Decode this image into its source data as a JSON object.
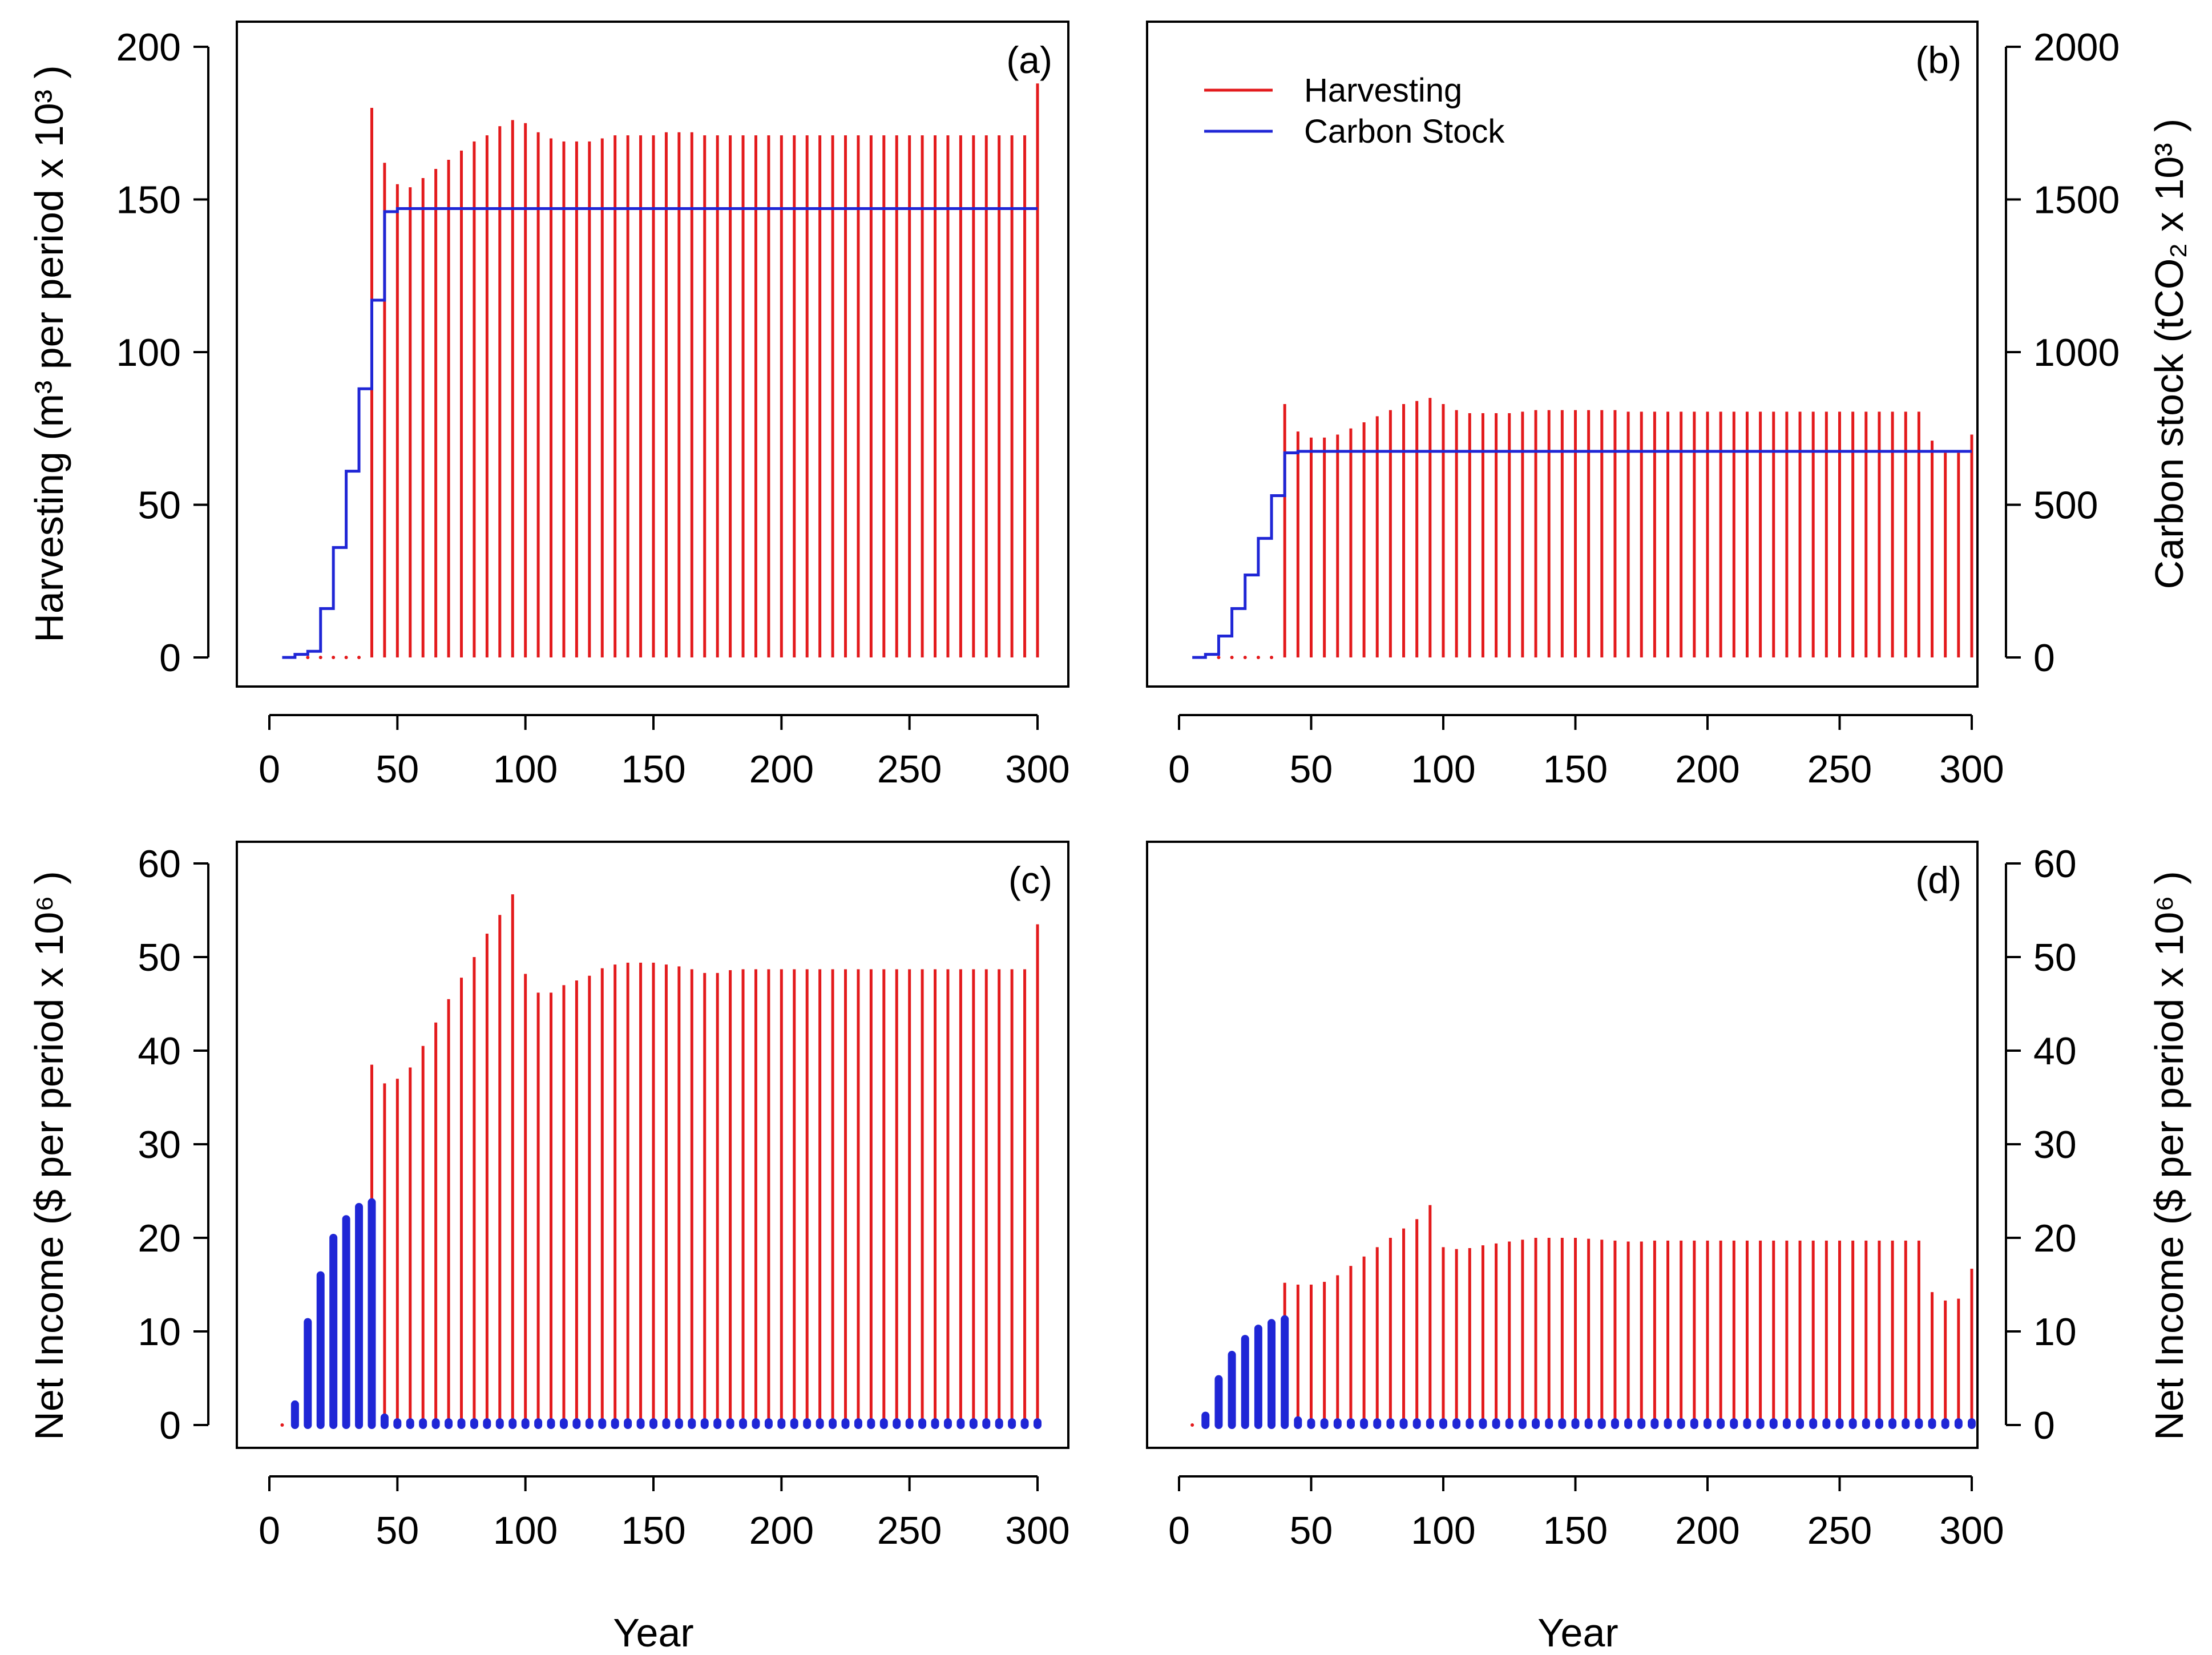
{
  "figure": {
    "xlabel_left": "Year",
    "xlabel_right": "Year",
    "ylabel_a": "Harvesting (m³ per period x 10³ )",
    "ylabel_b": "Carbon stock (tCO₂ x 10³ )",
    "ylabel_c": "Net Income ($ per period x 10⁶ )",
    "ylabel_d": "Net Income ($ per period x 10⁶ )",
    "legend": {
      "harvest": "Harvesting",
      "carbon": "Carbon Stock"
    },
    "colors": {
      "harvest": "#e31a1c",
      "carbon": "#1f26d6",
      "axis": "#000000"
    }
  },
  "chart_data": [
    {
      "panel": "(a)",
      "type": "bar",
      "xlabel": "Year",
      "ylabel": "Harvesting (m³ per period x 10³ )",
      "xlim": [
        0,
        300
      ],
      "ylim": [
        0,
        200
      ],
      "xticks": [
        0,
        50,
        100,
        150,
        200,
        250,
        300
      ],
      "yticks": [
        0,
        50,
        100,
        150,
        200
      ],
      "yaxis_side": "left",
      "series": [
        {
          "name": "Harvesting",
          "style": "bars",
          "color": "#e31a1c",
          "x": [
            15,
            20,
            25,
            30,
            35,
            40,
            45,
            50,
            55,
            60,
            65,
            70,
            75,
            80,
            85,
            90,
            95,
            100,
            105,
            110,
            115,
            120,
            125,
            130,
            135,
            140,
            145,
            150,
            155,
            160,
            165,
            170,
            175,
            180,
            185,
            190,
            195,
            200,
            205,
            210,
            215,
            220,
            225,
            230,
            235,
            240,
            245,
            250,
            255,
            260,
            265,
            270,
            275,
            280,
            285,
            290,
            295,
            300
          ],
          "values": [
            0,
            0,
            0,
            0,
            0,
            180,
            162,
            155,
            154,
            157,
            160,
            163,
            166,
            169,
            171,
            174,
            176,
            175,
            172,
            170,
            169,
            169,
            169,
            170,
            171,
            171,
            171,
            171,
            172,
            172,
            172,
            171,
            171,
            171,
            171,
            171,
            171,
            171,
            171,
            171,
            171,
            171,
            171,
            171,
            171,
            171,
            171,
            171,
            171,
            171,
            171,
            171,
            171,
            171,
            171,
            171,
            171,
            188
          ]
        },
        {
          "name": "Carbon Stock",
          "style": "step",
          "color": "#1f26d6",
          "x": [
            5,
            10,
            15,
            20,
            25,
            30,
            35,
            40,
            45,
            50,
            300
          ],
          "values": [
            0,
            1,
            2,
            16,
            36,
            61,
            88,
            117,
            146,
            147,
            147
          ]
        }
      ]
    },
    {
      "panel": "(b)",
      "type": "bar",
      "xlabel": "Year",
      "ylabel": "Carbon stock (tCO₂ x 10³ )",
      "xlim": [
        0,
        300
      ],
      "ylim": [
        0,
        2000
      ],
      "xticks": [
        0,
        50,
        100,
        150,
        200,
        250,
        300
      ],
      "yticks": [
        0,
        500,
        1000,
        1500,
        2000
      ],
      "yaxis_side": "right",
      "legend": [
        "Harvesting",
        "Carbon Stock"
      ],
      "legend_position": "top-left",
      "series": [
        {
          "name": "Harvesting",
          "style": "bars",
          "color": "#e31a1c",
          "x": [
            15,
            20,
            25,
            30,
            35,
            40,
            45,
            50,
            55,
            60,
            65,
            70,
            75,
            80,
            85,
            90,
            95,
            100,
            105,
            110,
            115,
            120,
            125,
            130,
            135,
            140,
            145,
            150,
            155,
            160,
            165,
            170,
            175,
            180,
            185,
            190,
            195,
            200,
            205,
            210,
            215,
            220,
            225,
            230,
            235,
            240,
            245,
            250,
            255,
            260,
            265,
            270,
            275,
            280,
            285,
            290,
            295,
            300
          ],
          "values": [
            0,
            0,
            0,
            0,
            0,
            830,
            740,
            720,
            720,
            730,
            750,
            770,
            790,
            810,
            830,
            840,
            850,
            830,
            810,
            800,
            800,
            800,
            800,
            805,
            810,
            810,
            810,
            810,
            810,
            810,
            810,
            805,
            805,
            805,
            805,
            805,
            805,
            805,
            805,
            805,
            805,
            805,
            805,
            805,
            805,
            805,
            805,
            805,
            805,
            805,
            805,
            805,
            805,
            805,
            710,
            670,
            670,
            730
          ]
        },
        {
          "name": "Carbon Stock",
          "style": "step",
          "color": "#1f26d6",
          "x": [
            5,
            10,
            15,
            20,
            25,
            30,
            35,
            40,
            45,
            50,
            300
          ],
          "values": [
            0,
            10,
            70,
            160,
            270,
            390,
            530,
            670,
            675,
            675,
            675
          ]
        }
      ]
    },
    {
      "panel": "(c)",
      "type": "bar",
      "xlabel": "Year",
      "ylabel": "Net Income ($ per period x 10⁶ )",
      "xlim": [
        0,
        300
      ],
      "ylim": [
        0,
        60
      ],
      "xticks": [
        0,
        50,
        100,
        150,
        200,
        250,
        300
      ],
      "yticks": [
        0,
        10,
        20,
        30,
        40,
        50,
        60
      ],
      "yaxis_side": "left",
      "series": [
        {
          "name": "Harvesting",
          "style": "bars",
          "color": "#e31a1c",
          "x": [
            5,
            10,
            15,
            20,
            25,
            30,
            35,
            40,
            45,
            50,
            55,
            60,
            65,
            70,
            75,
            80,
            85,
            90,
            95,
            100,
            105,
            110,
            115,
            120,
            125,
            130,
            135,
            140,
            145,
            150,
            155,
            160,
            165,
            170,
            175,
            180,
            185,
            190,
            195,
            200,
            205,
            210,
            215,
            220,
            225,
            230,
            235,
            240,
            245,
            250,
            255,
            260,
            265,
            270,
            275,
            280,
            285,
            290,
            295,
            300
          ],
          "values": [
            0,
            0,
            0,
            0,
            0,
            0,
            0,
            38.5,
            36.5,
            37,
            38.2,
            40.5,
            43,
            45.5,
            47.8,
            50,
            52.5,
            54.5,
            56.7,
            48.2,
            46.2,
            46.2,
            47,
            47.5,
            48,
            48.8,
            49.2,
            49.4,
            49.4,
            49.4,
            49.2,
            49,
            48.7,
            48.3,
            48.3,
            48.6,
            48.7,
            48.7,
            48.7,
            48.7,
            48.7,
            48.7,
            48.7,
            48.7,
            48.7,
            48.7,
            48.7,
            48.7,
            48.7,
            48.7,
            48.7,
            48.7,
            48.7,
            48.7,
            48.7,
            48.7,
            48.7,
            48.7,
            48.7,
            53.5
          ]
        },
        {
          "name": "Carbon Stock",
          "style": "bars-thick",
          "color": "#1f26d6",
          "x": [
            10,
            15,
            20,
            25,
            30,
            35,
            40,
            45,
            50,
            55,
            60,
            65,
            70,
            75,
            80,
            85,
            90,
            95,
            100,
            105,
            110,
            115,
            120,
            125,
            130,
            135,
            140,
            145,
            150,
            155,
            160,
            165,
            170,
            175,
            180,
            185,
            190,
            195,
            200,
            205,
            210,
            215,
            220,
            225,
            230,
            235,
            240,
            245,
            250,
            255,
            260,
            265,
            270,
            275,
            280,
            285,
            290,
            295,
            300
          ],
          "values": [
            2.2,
            11,
            16,
            20,
            22,
            23.3,
            23.8,
            0.8,
            0.3,
            0.3,
            0.3,
            0.3,
            0.3,
            0.3,
            0.3,
            0.3,
            0.3,
            0.3,
            0.3,
            0.3,
            0.3,
            0.3,
            0.3,
            0.3,
            0.3,
            0.3,
            0.3,
            0.3,
            0.3,
            0.3,
            0.3,
            0.3,
            0.3,
            0.3,
            0.3,
            0.3,
            0.3,
            0.3,
            0.3,
            0.3,
            0.3,
            0.3,
            0.3,
            0.3,
            0.3,
            0.3,
            0.3,
            0.3,
            0.3,
            0.3,
            0.3,
            0.3,
            0.3,
            0.3,
            0.3,
            0.3,
            0.3,
            0.3,
            0.3
          ]
        }
      ]
    },
    {
      "panel": "(d)",
      "type": "bar",
      "xlabel": "Year",
      "ylabel": "Net Income ($ per period x 10⁶ )",
      "xlim": [
        0,
        300
      ],
      "ylim": [
        0,
        60
      ],
      "xticks": [
        0,
        50,
        100,
        150,
        200,
        250,
        300
      ],
      "yticks": [
        0,
        10,
        20,
        30,
        40,
        50,
        60
      ],
      "yaxis_side": "right",
      "series": [
        {
          "name": "Harvesting",
          "style": "bars",
          "color": "#e31a1c",
          "x": [
            5,
            10,
            15,
            20,
            25,
            30,
            35,
            40,
            45,
            50,
            55,
            60,
            65,
            70,
            75,
            80,
            85,
            90,
            95,
            100,
            105,
            110,
            115,
            120,
            125,
            130,
            135,
            140,
            145,
            150,
            155,
            160,
            165,
            170,
            175,
            180,
            185,
            190,
            195,
            200,
            205,
            210,
            215,
            220,
            225,
            230,
            235,
            240,
            245,
            250,
            255,
            260,
            265,
            270,
            275,
            280,
            285,
            290,
            295,
            300
          ],
          "values": [
            0,
            0,
            0,
            0,
            0,
            0,
            0,
            15.2,
            15,
            15,
            15.3,
            16,
            17,
            18,
            19,
            20,
            21,
            22,
            23.5,
            19,
            18.8,
            18.9,
            19.2,
            19.4,
            19.6,
            19.8,
            20,
            20,
            20,
            20,
            19.9,
            19.8,
            19.7,
            19.6,
            19.6,
            19.7,
            19.7,
            19.7,
            19.7,
            19.7,
            19.7,
            19.7,
            19.7,
            19.7,
            19.7,
            19.7,
            19.7,
            19.7,
            19.7,
            19.7,
            19.7,
            19.7,
            19.7,
            19.7,
            19.7,
            19.7,
            14.2,
            13.3,
            13.5,
            16.7
          ]
        },
        {
          "name": "Carbon Stock",
          "style": "bars-thick",
          "color": "#1f26d6",
          "x": [
            10,
            15,
            20,
            25,
            30,
            35,
            40,
            45,
            50,
            55,
            60,
            65,
            70,
            75,
            80,
            85,
            90,
            95,
            100,
            105,
            110,
            115,
            120,
            125,
            130,
            135,
            140,
            145,
            150,
            155,
            160,
            165,
            170,
            175,
            180,
            185,
            190,
            195,
            200,
            205,
            210,
            215,
            220,
            225,
            230,
            235,
            240,
            245,
            250,
            255,
            260,
            265,
            270,
            275,
            280,
            285,
            290,
            295,
            300
          ],
          "values": [
            1,
            4.9,
            7.5,
            9.2,
            10.3,
            10.9,
            11.3,
            0.5,
            0.3,
            0.3,
            0.3,
            0.3,
            0.3,
            0.3,
            0.3,
            0.3,
            0.3,
            0.3,
            0.3,
            0.3,
            0.3,
            0.3,
            0.3,
            0.3,
            0.3,
            0.3,
            0.3,
            0.3,
            0.3,
            0.3,
            0.3,
            0.3,
            0.3,
            0.3,
            0.3,
            0.3,
            0.3,
            0.3,
            0.3,
            0.3,
            0.3,
            0.3,
            0.3,
            0.3,
            0.3,
            0.3,
            0.3,
            0.3,
            0.3,
            0.3,
            0.3,
            0.3,
            0.3,
            0.3,
            0.3,
            0.3,
            0.3,
            0.3,
            0.3
          ]
        }
      ]
    }
  ]
}
